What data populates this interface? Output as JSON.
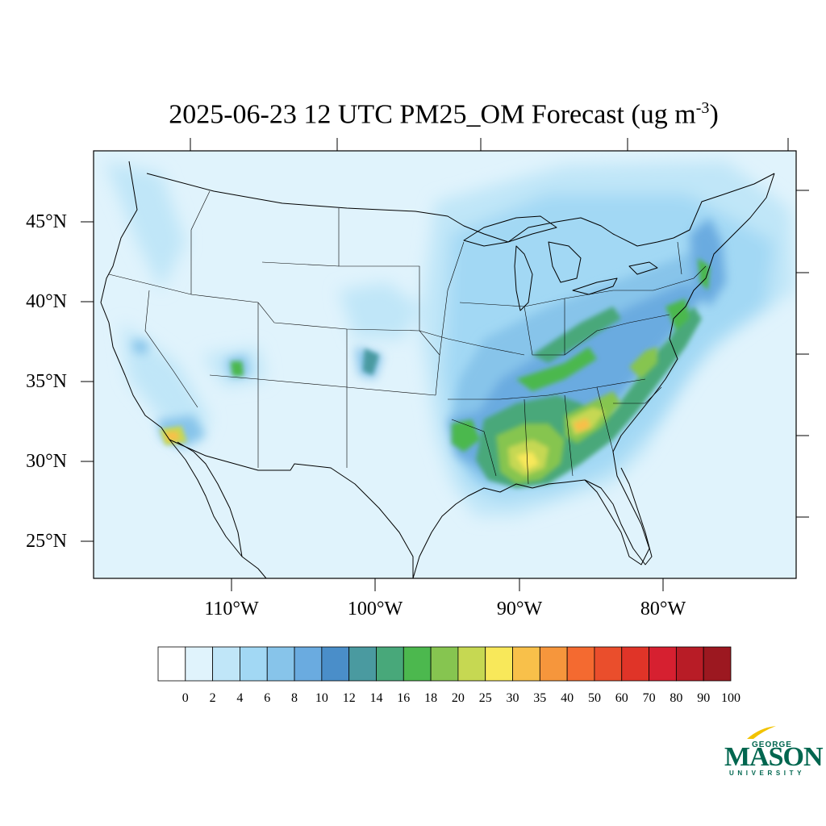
{
  "map": {
    "title_main": "2025-06-23 12 UTC PM25_OM Forecast (ug m",
    "title_exp": "-3",
    "title_close": ")",
    "lat_labels": [
      "45°N",
      "40°N",
      "35°N",
      "30°N",
      "25°N"
    ],
    "lon_labels": [
      "110°W",
      "100°W",
      "90°W",
      "80°W"
    ],
    "extent": {
      "lon": [
        -119,
        -70
      ],
      "lat": [
        22.7,
        49.5
      ]
    },
    "background_color": "#e0f3fc",
    "hotspots_described": [
      "Southeastern US (Louisiana, Mississippi, Alabama, Georgia)",
      "Appalachian corridor",
      "Mid-Atlantic / New York coast",
      "Southern California / Baja",
      "Southern Utah"
    ]
  },
  "colorbar": {
    "labels": [
      "0",
      "2",
      "4",
      "6",
      "8",
      "10",
      "12",
      "14",
      "16",
      "18",
      "20",
      "25",
      "30",
      "35",
      "40",
      "50",
      "60",
      "70",
      "80",
      "90",
      "100"
    ],
    "colors": [
      "#ffffff",
      "#e0f3fc",
      "#c0e6f8",
      "#a2d8f4",
      "#87c4ea",
      "#6aabe0",
      "#4a8ec9",
      "#4a9aa0",
      "#48a87a",
      "#4cb84e",
      "#86c550",
      "#c6d852",
      "#f8e85a",
      "#f8c04a",
      "#f6963c",
      "#f46a30",
      "#ea4e2c",
      "#e03428",
      "#d62030",
      "#b81c26",
      "#9c1820"
    ]
  },
  "logo": {
    "line1": "GEORGE",
    "line2": "MASON",
    "line3": "UNIVERSITY"
  }
}
